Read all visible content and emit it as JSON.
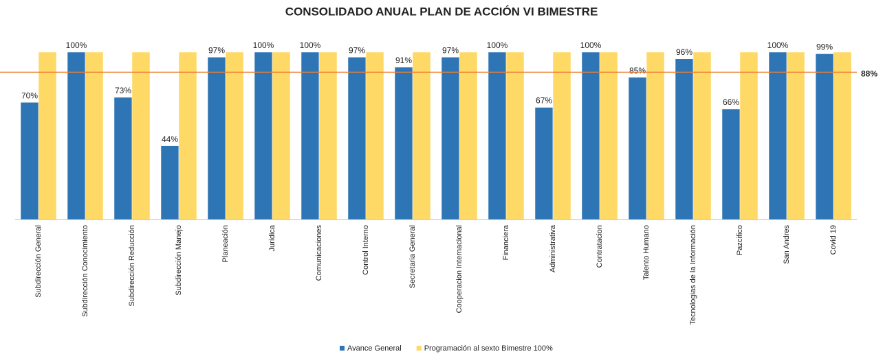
{
  "chart_data": {
    "type": "bar",
    "title": "CONSOLIDADO ANUAL PLAN DE ACCIÓN VI BIMESTRE",
    "categories": [
      "Subdirección General",
      "Subdirección Conocimiento",
      "Subdirección Reducción",
      "Subdirección Manejo",
      "Planeación",
      "Jurídica",
      "Comunicaciones",
      "Control Interno",
      "Secretaria General",
      "Cooperacion Internacional",
      "Financiera",
      "Administrativa",
      "Contratacion",
      "Talento Humano",
      "Tecnologias de la Información",
      "Pazcifico",
      "San Andres",
      "Covid 19"
    ],
    "series": [
      {
        "name": "Avance General",
        "color": "#2e75b6",
        "values": [
          70,
          100,
          73,
          44,
          97,
          100,
          100,
          97,
          91,
          97,
          100,
          67,
          100,
          85,
          96,
          66,
          100,
          99
        ],
        "value_labels": [
          "70%",
          "100%",
          "73%",
          "44%",
          "97%",
          "100%",
          "100%",
          "97%",
          "91%",
          "97%",
          "100%",
          "67%",
          "100%",
          "85%",
          "96%",
          "66%",
          "100%",
          "99%"
        ]
      },
      {
        "name": "Programación al sexto Bimestre 100%",
        "color": "#ffd966",
        "values": [
          100,
          100,
          100,
          100,
          100,
          100,
          100,
          100,
          100,
          100,
          100,
          100,
          100,
          100,
          100,
          100,
          100,
          100
        ]
      }
    ],
    "reference_line": {
      "value": 88,
      "label": "88%",
      "color": "#ed7d31"
    },
    "ylim": [
      0,
      100
    ]
  }
}
